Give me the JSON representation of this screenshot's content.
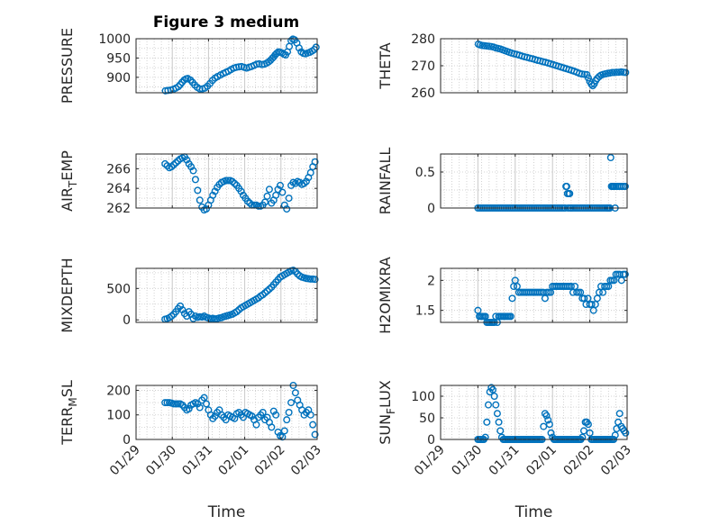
{
  "figure_title": "Figure 3 medium",
  "x_label": "Time",
  "x_tick_labels": [
    "01/29",
    "01/30",
    "01/31",
    "02/01",
    "02/02",
    "02/03"
  ],
  "colors": {
    "marker": "#0072BD",
    "axis": "#262626",
    "grid": "#c8c8c8"
  },
  "chart_data": [
    {
      "type": "scatter",
      "title": "Figure 3 medium",
      "ylabel": "PRESSURE",
      "ylim": [
        860,
        1000
      ],
      "yticks": [
        900,
        950,
        1000
      ],
      "xlim": [
        0,
        5
      ],
      "x": [
        0.81,
        0.88,
        0.96,
        1.03,
        1.1,
        1.17,
        1.22,
        1.27,
        1.33,
        1.38,
        1.43,
        1.5,
        1.56,
        1.62,
        1.69,
        1.76,
        1.83,
        1.9,
        1.97,
        2.04,
        2.11,
        2.18,
        2.25,
        2.33,
        2.41,
        2.48,
        2.55,
        2.62,
        2.7,
        2.77,
        2.84,
        2.91,
        2.98,
        3.05,
        3.12,
        3.19,
        3.26,
        3.33,
        3.4,
        3.47,
        3.54,
        3.61,
        3.66,
        3.71,
        3.76,
        3.8,
        3.84,
        3.88,
        3.93,
        3.98,
        4.03,
        4.08,
        4.13,
        4.18,
        4.23,
        4.28,
        4.33,
        4.38,
        4.44,
        4.5,
        4.56,
        4.62,
        4.68,
        4.74,
        4.8,
        4.86,
        4.92,
        4.97
      ],
      "y": [
        865,
        866,
        867,
        869,
        872,
        876,
        881,
        887,
        893,
        896,
        897,
        893,
        887,
        880,
        874,
        870,
        870,
        872,
        877,
        884,
        892,
        898,
        902,
        906,
        910,
        913,
        916,
        920,
        924,
        926,
        927,
        928,
        926,
        924,
        926,
        928,
        931,
        934,
        935,
        933,
        934,
        937,
        940,
        944,
        949,
        953,
        958,
        962,
        966,
        965,
        963,
        960,
        958,
        966,
        980,
        995,
        999,
        997,
        989,
        976,
        966,
        962,
        961,
        963,
        965,
        968,
        972,
        978
      ]
    },
    {
      "type": "scatter",
      "ylabel": "THETA",
      "ylim": [
        260,
        280
      ],
      "yticks": [
        260,
        270,
        280
      ],
      "xlim": [
        0,
        5
      ],
      "x": [
        1.01,
        1.06,
        1.12,
        1.18,
        1.24,
        1.3,
        1.36,
        1.42,
        1.48,
        1.54,
        1.6,
        1.66,
        1.72,
        1.78,
        1.84,
        1.9,
        1.97,
        2.04,
        2.11,
        2.18,
        2.25,
        2.32,
        2.39,
        2.46,
        2.53,
        2.6,
        2.67,
        2.74,
        2.81,
        2.88,
        2.95,
        3.02,
        3.09,
        3.16,
        3.23,
        3.3,
        3.37,
        3.44,
        3.51,
        3.58,
        3.65,
        3.72,
        3.79,
        3.86,
        3.92,
        3.96,
        4.0,
        4.04,
        4.08,
        4.12,
        4.16,
        4.2,
        4.25,
        4.3,
        4.36,
        4.42,
        4.48,
        4.54,
        4.6,
        4.66,
        4.72,
        4.78,
        4.84,
        4.9,
        4.96
      ],
      "y": [
        278.0,
        277.7,
        277.5,
        277.4,
        277.3,
        277.2,
        277.1,
        276.9,
        276.6,
        276.4,
        276.2,
        275.9,
        275.6,
        275.3,
        275.0,
        274.7,
        274.4,
        274.2,
        273.9,
        273.6,
        273.3,
        273.1,
        272.8,
        272.6,
        272.3,
        272.0,
        271.8,
        271.5,
        271.3,
        271.0,
        270.7,
        270.4,
        270.1,
        269.8,
        269.5,
        269.2,
        268.9,
        268.6,
        268.3,
        268.0,
        267.6,
        267.2,
        266.9,
        266.8,
        266.7,
        265.5,
        264.2,
        263.2,
        262.6,
        263.3,
        264.5,
        265.3,
        266.0,
        266.5,
        266.8,
        267.0,
        267.2,
        267.3,
        267.5,
        267.5,
        267.6,
        267.6,
        267.7,
        267.6,
        267.5
      ]
    },
    {
      "type": "scatter",
      "ylabel": "AIR_TEMP",
      "ylim": [
        262,
        267.5
      ],
      "yticks": [
        262,
        264,
        266
      ],
      "xlim": [
        0,
        5
      ],
      "x": [
        0.8,
        0.86,
        0.92,
        0.98,
        1.04,
        1.1,
        1.16,
        1.22,
        1.28,
        1.34,
        1.4,
        1.46,
        1.52,
        1.58,
        1.64,
        1.7,
        1.76,
        1.82,
        1.88,
        1.94,
        2.0,
        2.06,
        2.12,
        2.18,
        2.24,
        2.3,
        2.36,
        2.42,
        2.48,
        2.54,
        2.6,
        2.66,
        2.72,
        2.78,
        2.84,
        2.9,
        2.96,
        3.02,
        3.08,
        3.14,
        3.2,
        3.26,
        3.32,
        3.38,
        3.44,
        3.5,
        3.56,
        3.62,
        3.68,
        3.74,
        3.8,
        3.86,
        3.92,
        3.98,
        4.04,
        4.1,
        4.16,
        4.22,
        4.28,
        4.34,
        4.4,
        4.46,
        4.52,
        4.58,
        4.64,
        4.7,
        4.76,
        4.82,
        4.88,
        4.94
      ],
      "y": [
        266.5,
        266.3,
        266.1,
        266.2,
        266.4,
        266.6,
        266.8,
        267.0,
        267.1,
        267.2,
        266.9,
        266.5,
        266.2,
        265.8,
        264.9,
        263.8,
        262.8,
        262.1,
        261.8,
        261.9,
        262.3,
        262.8,
        263.3,
        263.7,
        264.1,
        264.4,
        264.6,
        264.7,
        264.8,
        264.8,
        264.8,
        264.7,
        264.5,
        264.3,
        264.0,
        263.7,
        263.3,
        263.0,
        262.7,
        262.5,
        262.3,
        262.3,
        262.3,
        262.2,
        262.2,
        262.3,
        262.6,
        263.2,
        263.9,
        262.5,
        262.8,
        263.3,
        263.9,
        264.3,
        263.6,
        262.3,
        261.9,
        263.0,
        264.3,
        264.6,
        264.5,
        264.7,
        264.6,
        264.4,
        264.5,
        264.7,
        265.1,
        265.6,
        266.2,
        266.7
      ]
    },
    {
      "type": "scatter",
      "ylabel": "RAINFALL",
      "ylim": [
        0,
        0.75
      ],
      "yticks": [
        0,
        0.5
      ],
      "xlim": [
        0,
        5
      ],
      "x": [
        1.0,
        1.05,
        1.1,
        1.15,
        1.2,
        1.25,
        1.3,
        1.35,
        1.4,
        1.45,
        1.5,
        1.55,
        1.6,
        1.65,
        1.7,
        1.75,
        1.8,
        1.85,
        1.9,
        1.95,
        2.0,
        2.05,
        2.1,
        2.15,
        2.2,
        2.25,
        2.3,
        2.35,
        2.4,
        2.45,
        2.5,
        2.55,
        2.6,
        2.65,
        2.7,
        2.75,
        2.8,
        2.85,
        2.9,
        2.95,
        3.0,
        3.05,
        3.1,
        3.15,
        3.2,
        3.25,
        3.3,
        3.34,
        3.36,
        3.38,
        3.4,
        3.42,
        3.44,
        3.46,
        3.48,
        3.5,
        3.55,
        3.6,
        3.65,
        3.7,
        3.75,
        3.8,
        3.85,
        3.9,
        3.95,
        4.0,
        4.05,
        4.1,
        4.15,
        4.2,
        4.25,
        4.3,
        4.35,
        4.4,
        4.45,
        4.48,
        4.5,
        4.52,
        4.54,
        4.56,
        4.58,
        4.6,
        4.62,
        4.64,
        4.66,
        4.68,
        4.7,
        4.75,
        4.8,
        4.85,
        4.9,
        4.95
      ],
      "y": [
        0,
        0,
        0,
        0,
        0,
        0,
        0,
        0,
        0,
        0,
        0,
        0,
        0,
        0,
        0,
        0,
        0,
        0,
        0,
        0,
        0,
        0,
        0,
        0,
        0,
        0,
        0,
        0,
        0,
        0,
        0,
        0,
        0,
        0,
        0,
        0,
        0,
        0,
        0,
        0,
        0,
        0,
        0,
        0,
        0,
        0,
        0,
        0,
        0.3,
        0.3,
        0.2,
        0,
        0.2,
        0.2,
        0,
        0,
        0,
        0,
        0,
        0,
        0,
        0,
        0,
        0,
        0,
        0,
        0,
        0,
        0,
        0,
        0,
        0,
        0,
        0,
        0,
        0,
        0,
        0,
        0,
        0.7,
        0.3,
        0.3,
        0.3,
        0.3,
        0.3,
        0,
        0.3,
        0.3,
        0.3,
        0.3,
        0.3,
        0.3
      ]
    },
    {
      "type": "scatter",
      "ylabel": "MIXDEPTH",
      "ylim": [
        -40,
        820
      ],
      "yticks": [
        0,
        500
      ],
      "xlim": [
        0,
        5
      ],
      "x": [
        0.8,
        0.86,
        0.92,
        0.98,
        1.04,
        1.1,
        1.16,
        1.22,
        1.28,
        1.34,
        1.4,
        1.46,
        1.52,
        1.58,
        1.64,
        1.7,
        1.76,
        1.82,
        1.88,
        1.94,
        2.0,
        2.06,
        2.12,
        2.18,
        2.24,
        2.3,
        2.36,
        2.42,
        2.48,
        2.54,
        2.6,
        2.66,
        2.72,
        2.78,
        2.84,
        2.9,
        2.96,
        3.02,
        3.08,
        3.14,
        3.2,
        3.26,
        3.32,
        3.38,
        3.44,
        3.5,
        3.56,
        3.62,
        3.68,
        3.74,
        3.8,
        3.86,
        3.92,
        3.98,
        4.04,
        4.1,
        4.16,
        4.22,
        4.28,
        4.34,
        4.4,
        4.46,
        4.52,
        4.58,
        4.64,
        4.7,
        4.76,
        4.82,
        4.88,
        4.94
      ],
      "y": [
        10,
        20,
        35,
        60,
        90,
        130,
        180,
        220,
        160,
        100,
        60,
        130,
        90,
        20,
        60,
        40,
        50,
        45,
        60,
        40,
        30,
        20,
        25,
        15,
        20,
        30,
        35,
        50,
        60,
        70,
        80,
        90,
        110,
        130,
        160,
        190,
        210,
        230,
        250,
        270,
        290,
        310,
        330,
        350,
        380,
        400,
        430,
        460,
        490,
        520,
        560,
        600,
        640,
        680,
        700,
        720,
        740,
        760,
        780,
        790,
        770,
        730,
        700,
        680,
        670,
        660,
        655,
        650,
        650,
        645
      ]
    },
    {
      "type": "scatter",
      "ylabel": "H2OMIXRA",
      "ylim": [
        1.3,
        2.2
      ],
      "yticks": [
        1.5,
        2
      ],
      "xlim": [
        0,
        5
      ],
      "x": [
        1.0,
        1.04,
        1.08,
        1.12,
        1.16,
        1.2,
        1.24,
        1.28,
        1.32,
        1.36,
        1.4,
        1.44,
        1.48,
        1.52,
        1.56,
        1.6,
        1.64,
        1.68,
        1.72,
        1.76,
        1.8,
        1.84,
        1.88,
        1.92,
        1.96,
        2.0,
        2.05,
        2.1,
        2.15,
        2.2,
        2.25,
        2.3,
        2.35,
        2.4,
        2.45,
        2.5,
        2.55,
        2.6,
        2.65,
        2.7,
        2.75,
        2.8,
        2.85,
        2.9,
        2.95,
        3.0,
        3.05,
        3.1,
        3.15,
        3.2,
        3.25,
        3.3,
        3.35,
        3.4,
        3.45,
        3.5,
        3.55,
        3.6,
        3.65,
        3.7,
        3.75,
        3.8,
        3.85,
        3.9,
        3.95,
        4.0,
        4.05,
        4.1,
        4.15,
        4.2,
        4.25,
        4.3,
        4.35,
        4.4,
        4.45,
        4.5,
        4.55,
        4.6,
        4.65,
        4.7,
        4.75,
        4.8,
        4.85,
        4.9,
        4.95
      ],
      "y": [
        1.5,
        1.4,
        1.4,
        1.4,
        1.4,
        1.4,
        1.3,
        1.3,
        1.3,
        1.3,
        1.3,
        1.3,
        1.4,
        1.3,
        1.4,
        1.4,
        1.4,
        1.4,
        1.4,
        1.4,
        1.4,
        1.4,
        1.4,
        1.7,
        1.9,
        2.0,
        1.9,
        1.8,
        1.8,
        1.8,
        1.8,
        1.8,
        1.8,
        1.8,
        1.8,
        1.8,
        1.8,
        1.8,
        1.8,
        1.8,
        1.8,
        1.7,
        1.8,
        1.8,
        1.8,
        1.9,
        1.9,
        1.9,
        1.9,
        1.9,
        1.9,
        1.9,
        1.9,
        1.9,
        1.9,
        1.9,
        1.8,
        1.9,
        1.8,
        1.8,
        1.8,
        1.7,
        1.7,
        1.6,
        1.7,
        1.6,
        1.6,
        1.5,
        1.6,
        1.7,
        1.8,
        1.9,
        1.8,
        1.9,
        1.9,
        1.9,
        2.0,
        2.0,
        2.0,
        2.1,
        2.1,
        2.1,
        2.0,
        2.1,
        2.1
      ]
    },
    {
      "type": "scatter",
      "ylabel": "TERR_MSL",
      "ylim": [
        0,
        220
      ],
      "yticks": [
        0,
        100,
        200
      ],
      "xlim": [
        0,
        5
      ],
      "x": [
        0.8,
        0.86,
        0.92,
        0.98,
        1.04,
        1.1,
        1.16,
        1.22,
        1.28,
        1.34,
        1.4,
        1.46,
        1.52,
        1.58,
        1.64,
        1.7,
        1.76,
        1.82,
        1.88,
        1.94,
        2.0,
        2.06,
        2.12,
        2.18,
        2.24,
        2.3,
        2.36,
        2.42,
        2.48,
        2.54,
        2.6,
        2.66,
        2.72,
        2.78,
        2.84,
        2.9,
        2.96,
        3.02,
        3.08,
        3.14,
        3.2,
        3.26,
        3.32,
        3.38,
        3.44,
        3.5,
        3.56,
        3.62,
        3.68,
        3.74,
        3.8,
        3.86,
        3.92,
        3.98,
        4.04,
        4.1,
        4.16,
        4.22,
        4.28,
        4.34,
        4.4,
        4.46,
        4.52,
        4.58,
        4.64,
        4.7,
        4.76,
        4.82,
        4.88,
        4.94
      ],
      "y": [
        150,
        150,
        150,
        148,
        145,
        145,
        145,
        145,
        140,
        130,
        120,
        125,
        140,
        145,
        150,
        145,
        130,
        160,
        170,
        145,
        120,
        100,
        85,
        95,
        110,
        120,
        100,
        90,
        80,
        100,
        95,
        90,
        85,
        105,
        110,
        100,
        90,
        110,
        105,
        100,
        95,
        80,
        60,
        90,
        100,
        110,
        80,
        90,
        70,
        50,
        115,
        100,
        30,
        15,
        10,
        35,
        80,
        110,
        150,
        220,
        190,
        160,
        140,
        120,
        100,
        110,
        120,
        100,
        60,
        20
      ]
    },
    {
      "type": "scatter",
      "ylabel": "SUN_FLUX",
      "ylim": [
        0,
        125
      ],
      "yticks": [
        0,
        50,
        100
      ],
      "xlim": [
        0,
        5
      ],
      "x": [
        1.0,
        1.04,
        1.08,
        1.12,
        1.16,
        1.2,
        1.24,
        1.28,
        1.32,
        1.36,
        1.4,
        1.44,
        1.48,
        1.52,
        1.56,
        1.6,
        1.64,
        1.68,
        1.72,
        1.76,
        1.8,
        1.84,
        1.88,
        1.92,
        1.96,
        2.0,
        2.04,
        2.08,
        2.12,
        2.16,
        2.2,
        2.24,
        2.28,
        2.32,
        2.36,
        2.4,
        2.44,
        2.48,
        2.52,
        2.56,
        2.6,
        2.64,
        2.68,
        2.72,
        2.76,
        2.8,
        2.84,
        2.88,
        2.92,
        2.96,
        3.0,
        3.04,
        3.08,
        3.12,
        3.16,
        3.2,
        3.24,
        3.28,
        3.32,
        3.36,
        3.4,
        3.44,
        3.48,
        3.52,
        3.56,
        3.6,
        3.64,
        3.68,
        3.72,
        3.76,
        3.8,
        3.84,
        3.88,
        3.92,
        3.96,
        4.0,
        4.04,
        4.08,
        4.12,
        4.16,
        4.2,
        4.24,
        4.28,
        4.32,
        4.36,
        4.4,
        4.44,
        4.48,
        4.52,
        4.56,
        4.6,
        4.64,
        4.68,
        4.72,
        4.76,
        4.8,
        4.84,
        4.88,
        4.92,
        4.96
      ],
      "y": [
        0,
        0,
        0,
        0,
        0,
        5,
        40,
        80,
        110,
        120,
        115,
        100,
        80,
        60,
        40,
        20,
        5,
        0,
        0,
        0,
        0,
        0,
        0,
        0,
        0,
        0,
        0,
        0,
        0,
        0,
        0,
        0,
        0,
        0,
        0,
        0,
        0,
        0,
        0,
        0,
        0,
        0,
        0,
        0,
        30,
        60,
        55,
        45,
        35,
        15,
        5,
        0,
        0,
        0,
        0,
        0,
        0,
        0,
        0,
        0,
        0,
        0,
        0,
        0,
        0,
        0,
        0,
        0,
        0,
        0,
        5,
        20,
        40,
        40,
        35,
        15,
        0,
        0,
        0,
        0,
        0,
        0,
        0,
        0,
        0,
        0,
        0,
        0,
        0,
        0,
        0,
        0,
        10,
        25,
        40,
        60,
        30,
        25,
        20,
        15
      ]
    }
  ]
}
